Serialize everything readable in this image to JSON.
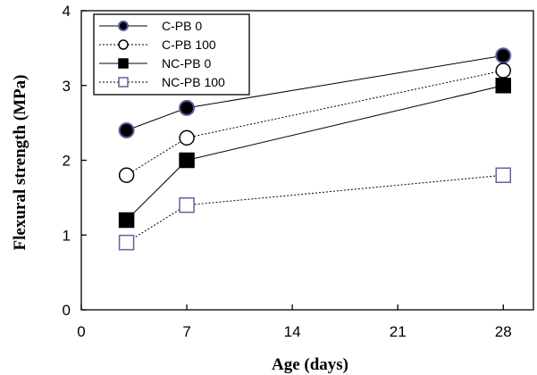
{
  "chart_data": {
    "type": "line",
    "title": "",
    "xlabel": "Age (days)",
    "ylabel": "Flexural strength (MPa)",
    "xlim": [
      0,
      30
    ],
    "ylim": [
      0,
      4
    ],
    "xticks": [
      0,
      7,
      14,
      21,
      28
    ],
    "yticks": [
      0,
      1,
      2,
      3,
      4
    ],
    "grid": false,
    "legend_position": "top-left",
    "x": [
      3,
      7,
      28
    ],
    "series": [
      {
        "name": "C-PB 0",
        "values": [
          2.4,
          2.7,
          3.4
        ],
        "marker": "circle-filled",
        "line": "solid",
        "color": "#000000",
        "marker_edge": "#5a5f9e"
      },
      {
        "name": "C-PB 100",
        "values": [
          1.8,
          2.3,
          3.2
        ],
        "marker": "circle-open",
        "line": "dotted",
        "color": "#000000",
        "marker_edge": "#000000"
      },
      {
        "name": "NC-PB 0",
        "values": [
          1.2,
          2.0,
          3.0
        ],
        "marker": "square-filled",
        "line": "solid",
        "color": "#000000",
        "marker_edge": "#000000"
      },
      {
        "name": "NC-PB 100",
        "values": [
          0.9,
          1.4,
          1.8
        ],
        "marker": "square-open",
        "line": "dotted",
        "color": "#000000",
        "marker_edge": "#6a5f9e"
      }
    ]
  }
}
